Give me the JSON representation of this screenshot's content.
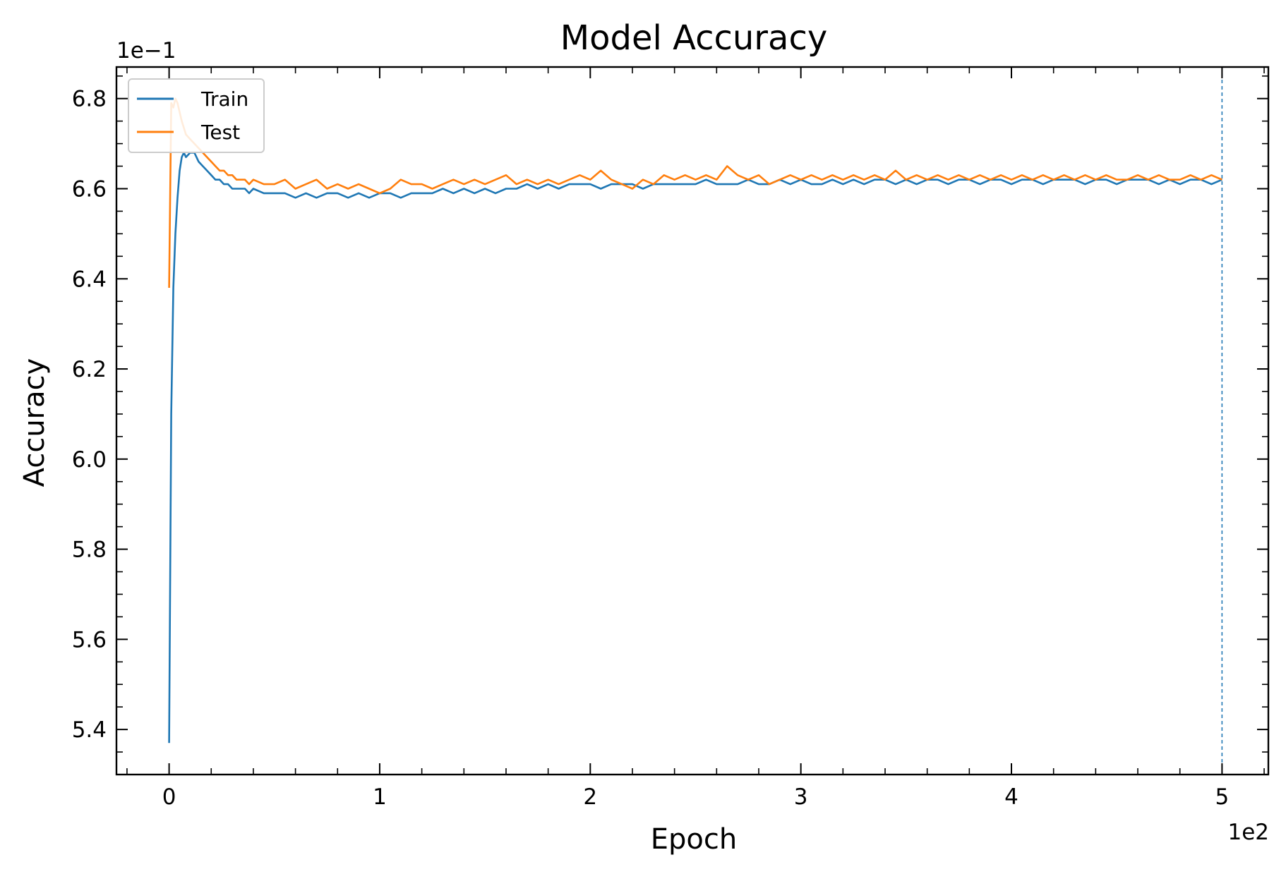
{
  "chart_data": {
    "type": "line",
    "title": "Model Accuracy",
    "xlabel": "Epoch",
    "ylabel": "Accuracy",
    "x_offset_text": "1e2",
    "y_offset_text": "1e−1",
    "xlim": [
      -25,
      522
    ],
    "ylim": [
      0.53,
      0.687
    ],
    "x_ticks": [
      {
        "value": 0,
        "label": "0"
      },
      {
        "value": 100,
        "label": "1"
      },
      {
        "value": 200,
        "label": "2"
      },
      {
        "value": 300,
        "label": "3"
      },
      {
        "value": 400,
        "label": "4"
      },
      {
        "value": 500,
        "label": "5"
      }
    ],
    "y_ticks": [
      {
        "value": 0.54,
        "label": "5.4"
      },
      {
        "value": 0.56,
        "label": "5.6"
      },
      {
        "value": 0.58,
        "label": "5.8"
      },
      {
        "value": 0.6,
        "label": "6.0"
      },
      {
        "value": 0.62,
        "label": "6.2"
      },
      {
        "value": 0.64,
        "label": "6.4"
      },
      {
        "value": 0.66,
        "label": "6.6"
      },
      {
        "value": 0.68,
        "label": "6.8"
      }
    ],
    "vline": {
      "x": 500,
      "style": "dashed",
      "color": "#1f77b4"
    },
    "legend": {
      "position": "upper-left"
    },
    "series": [
      {
        "name": "Train",
        "color": "#1f77b4",
        "x": [
          0,
          1,
          2,
          3,
          4,
          5,
          6,
          7,
          8,
          10,
          12,
          14,
          16,
          18,
          20,
          22,
          24,
          26,
          28,
          30,
          32,
          34,
          36,
          38,
          40,
          45,
          50,
          55,
          60,
          65,
          70,
          75,
          80,
          85,
          90,
          95,
          100,
          105,
          110,
          115,
          120,
          125,
          130,
          135,
          140,
          145,
          150,
          155,
          160,
          165,
          170,
          175,
          180,
          185,
          190,
          195,
          200,
          205,
          210,
          215,
          220,
          225,
          230,
          235,
          240,
          245,
          250,
          255,
          260,
          265,
          270,
          275,
          280,
          285,
          290,
          295,
          300,
          305,
          310,
          315,
          320,
          325,
          330,
          335,
          340,
          345,
          350,
          355,
          360,
          365,
          370,
          375,
          380,
          385,
          390,
          395,
          400,
          405,
          410,
          415,
          420,
          425,
          430,
          435,
          440,
          445,
          450,
          455,
          460,
          465,
          470,
          475,
          480,
          485,
          490,
          495,
          500
        ],
        "values": [
          0.537,
          0.61,
          0.638,
          0.65,
          0.658,
          0.664,
          0.667,
          0.668,
          0.667,
          0.668,
          0.668,
          0.666,
          0.665,
          0.664,
          0.663,
          0.662,
          0.662,
          0.661,
          0.661,
          0.66,
          0.66,
          0.66,
          0.66,
          0.659,
          0.66,
          0.659,
          0.659,
          0.659,
          0.658,
          0.659,
          0.658,
          0.659,
          0.659,
          0.658,
          0.659,
          0.658,
          0.659,
          0.659,
          0.658,
          0.659,
          0.659,
          0.659,
          0.66,
          0.659,
          0.66,
          0.659,
          0.66,
          0.659,
          0.66,
          0.66,
          0.661,
          0.66,
          0.661,
          0.66,
          0.661,
          0.661,
          0.661,
          0.66,
          0.661,
          0.661,
          0.661,
          0.66,
          0.661,
          0.661,
          0.661,
          0.661,
          0.661,
          0.662,
          0.661,
          0.661,
          0.661,
          0.662,
          0.661,
          0.661,
          0.662,
          0.661,
          0.662,
          0.661,
          0.661,
          0.662,
          0.661,
          0.662,
          0.661,
          0.662,
          0.662,
          0.661,
          0.662,
          0.661,
          0.662,
          0.662,
          0.661,
          0.662,
          0.662,
          0.661,
          0.662,
          0.662,
          0.661,
          0.662,
          0.662,
          0.661,
          0.662,
          0.662,
          0.662,
          0.661,
          0.662,
          0.662,
          0.661,
          0.662,
          0.662,
          0.662,
          0.661,
          0.662,
          0.661,
          0.662,
          0.662,
          0.661,
          0.662
        ]
      },
      {
        "name": "Test",
        "color": "#ff7f0e",
        "x": [
          0,
          1,
          2,
          3,
          4,
          5,
          6,
          8,
          10,
          12,
          14,
          16,
          18,
          20,
          22,
          24,
          26,
          28,
          30,
          32,
          34,
          36,
          38,
          40,
          45,
          50,
          55,
          60,
          65,
          70,
          75,
          80,
          85,
          90,
          95,
          100,
          105,
          110,
          115,
          120,
          125,
          130,
          135,
          140,
          145,
          150,
          155,
          160,
          165,
          170,
          175,
          180,
          185,
          190,
          195,
          200,
          205,
          210,
          215,
          220,
          225,
          230,
          235,
          240,
          245,
          250,
          255,
          260,
          265,
          270,
          275,
          280,
          285,
          290,
          295,
          300,
          305,
          310,
          315,
          320,
          325,
          330,
          335,
          340,
          345,
          350,
          355,
          360,
          365,
          370,
          375,
          380,
          385,
          390,
          395,
          400,
          405,
          410,
          415,
          420,
          425,
          430,
          435,
          440,
          445,
          450,
          455,
          460,
          465,
          470,
          475,
          480,
          485,
          490,
          495,
          500
        ],
        "values": [
          0.638,
          0.679,
          0.678,
          0.68,
          0.679,
          0.677,
          0.675,
          0.672,
          0.671,
          0.67,
          0.669,
          0.668,
          0.667,
          0.666,
          0.665,
          0.664,
          0.664,
          0.663,
          0.663,
          0.662,
          0.662,
          0.662,
          0.661,
          0.662,
          0.661,
          0.661,
          0.662,
          0.66,
          0.661,
          0.662,
          0.66,
          0.661,
          0.66,
          0.661,
          0.66,
          0.659,
          0.66,
          0.662,
          0.661,
          0.661,
          0.66,
          0.661,
          0.662,
          0.661,
          0.662,
          0.661,
          0.662,
          0.663,
          0.661,
          0.662,
          0.661,
          0.662,
          0.661,
          0.662,
          0.663,
          0.662,
          0.664,
          0.662,
          0.661,
          0.66,
          0.662,
          0.661,
          0.663,
          0.662,
          0.663,
          0.662,
          0.663,
          0.662,
          0.665,
          0.663,
          0.662,
          0.663,
          0.661,
          0.662,
          0.663,
          0.662,
          0.663,
          0.662,
          0.663,
          0.662,
          0.663,
          0.662,
          0.663,
          0.662,
          0.664,
          0.662,
          0.663,
          0.662,
          0.663,
          0.662,
          0.663,
          0.662,
          0.663,
          0.662,
          0.663,
          0.662,
          0.663,
          0.662,
          0.663,
          0.662,
          0.663,
          0.662,
          0.663,
          0.662,
          0.663,
          0.662,
          0.662,
          0.663,
          0.662,
          0.663,
          0.662,
          0.662,
          0.663,
          0.662,
          0.663,
          0.662
        ]
      }
    ]
  }
}
